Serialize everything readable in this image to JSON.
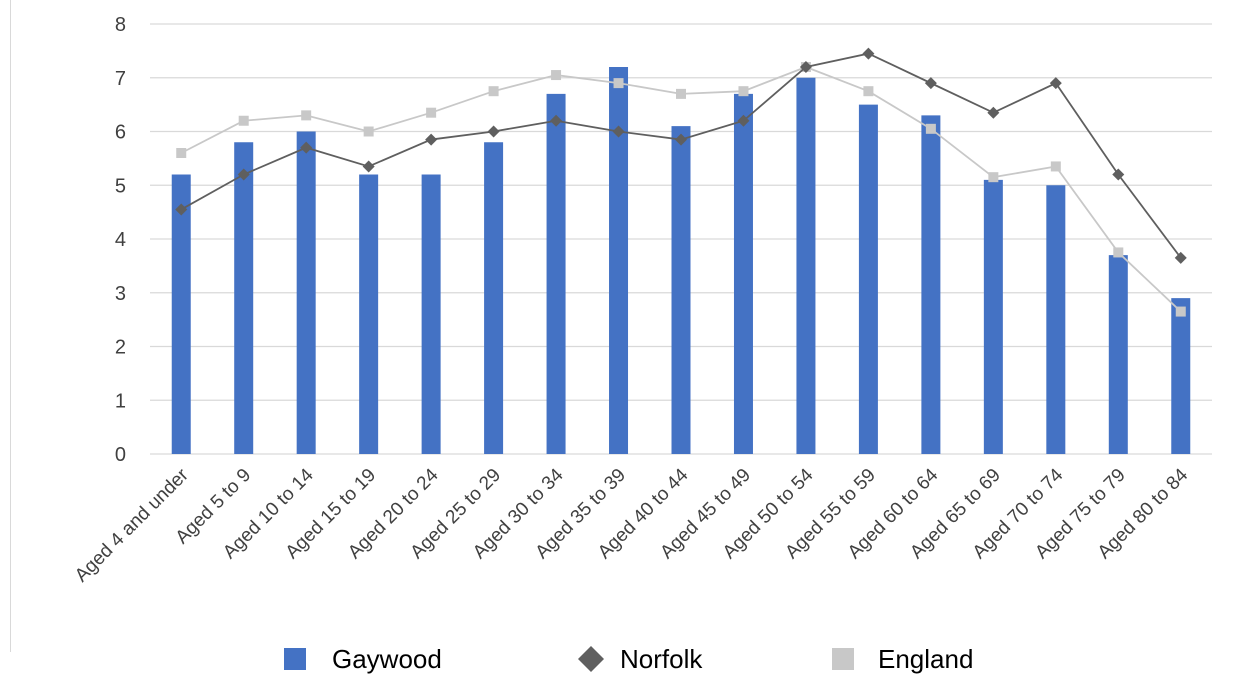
{
  "chart_data": {
    "type": "bar",
    "title": "",
    "xlabel": "",
    "ylabel": "",
    "ylim": [
      0,
      8
    ],
    "yticks": [
      0,
      1,
      2,
      3,
      4,
      5,
      6,
      7,
      8
    ],
    "grid": true,
    "legend_position": "bottom",
    "categories": [
      "Aged 4 and under",
      "Aged 5 to 9",
      "Aged 10 to 14",
      "Aged 15 to 19",
      "Aged 20 to 24",
      "Aged 25 to 29",
      "Aged 30 to 34",
      "Aged 35 to 39",
      "Aged 40 to 44",
      "Aged 45 to 49",
      "Aged 50 to 54",
      "Aged 55 to 59",
      "Aged 60 to 64",
      "Aged 65 to 69",
      "Aged 70 to 74",
      "Aged 75 to 79",
      "Aged 80 to 84"
    ],
    "series": [
      {
        "name": "Gaywood",
        "type": "bar",
        "color": "#4472c4",
        "values": [
          5.2,
          5.8,
          6.0,
          5.2,
          5.2,
          5.8,
          6.7,
          7.2,
          6.1,
          6.7,
          7.0,
          6.5,
          6.3,
          5.1,
          5.0,
          3.7,
          2.9
        ]
      },
      {
        "name": "Norfolk",
        "type": "line",
        "marker": "diamond",
        "color": "#5f5f5f",
        "values": [
          4.55,
          5.2,
          5.7,
          5.35,
          5.85,
          6.0,
          6.2,
          6.0,
          5.85,
          6.2,
          7.2,
          7.45,
          6.9,
          6.35,
          6.9,
          5.2,
          3.65
        ]
      },
      {
        "name": "England",
        "type": "line",
        "marker": "square",
        "color": "#c8c8c8",
        "values": [
          5.6,
          6.2,
          6.3,
          6.0,
          6.35,
          6.75,
          7.05,
          6.9,
          6.7,
          6.75,
          7.2,
          6.75,
          6.05,
          5.15,
          5.35,
          3.75,
          2.65
        ]
      }
    ]
  }
}
